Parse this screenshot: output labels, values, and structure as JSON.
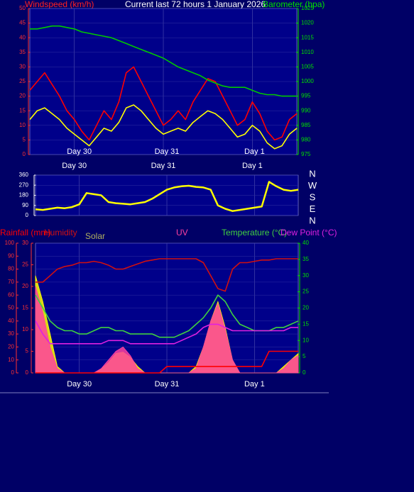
{
  "chart_data": [
    {
      "type": "line",
      "title": "Current last 72 hours 1 January 2026",
      "ylabel": "Windspeed (km/h)",
      "y2label": "Barometer (hpa)",
      "categories": [
        null,
        null,
        null,
        null,
        null,
        null,
        "Day 30",
        null,
        null,
        null,
        null,
        null,
        null,
        null,
        null,
        null,
        null,
        null,
        "Day 31",
        null,
        null,
        null,
        null,
        null,
        null,
        null,
        null,
        null,
        null,
        null,
        "Day 1",
        null,
        null,
        null,
        null,
        null,
        null
      ],
      "ylim": [
        0,
        50
      ],
      "yticks": [
        0,
        5,
        10,
        15,
        20,
        25,
        30,
        35,
        40,
        45,
        50
      ],
      "y2lim": [
        975,
        1025
      ],
      "y2ticks": [
        975,
        980,
        985,
        990,
        995,
        1000,
        1005,
        1010,
        1015,
        1020,
        1025
      ],
      "series": [
        {
          "color": "#ff0000",
          "values": [
            22,
            25,
            28,
            24,
            20,
            15,
            12,
            8,
            5,
            10,
            15,
            12,
            18,
            28,
            30,
            25,
            20,
            15,
            10,
            12,
            15,
            12,
            18,
            22,
            26,
            25,
            20,
            15,
            10,
            12,
            18,
            14,
            8,
            5,
            6,
            12,
            14
          ]
        },
        {
          "color": "#ffff00",
          "values": [
            12,
            15,
            16,
            14,
            12,
            9,
            7,
            5,
            3,
            6,
            9,
            8,
            11,
            16,
            17,
            15,
            12,
            9,
            7,
            8,
            9,
            8,
            11,
            13,
            15,
            14,
            12,
            9,
            6,
            7,
            10,
            8,
            4,
            2,
            3,
            7,
            9
          ]
        },
        {
          "color": "#00c800",
          "axis": "y2",
          "values": [
            1018,
            1018,
            1018.5,
            1019,
            1019,
            1018.5,
            1018,
            1017,
            1016.5,
            1016,
            1015.5,
            1015,
            1014,
            1013,
            1012,
            1011,
            1010,
            1009,
            1008,
            1006.5,
            1005,
            1004,
            1003,
            1002,
            1000.5,
            999.5,
            998.5,
            998,
            998,
            998,
            997,
            996,
            995.5,
            995.5,
            995,
            995,
            995
          ]
        }
      ]
    },
    {
      "type": "line",
      "categories": [
        null,
        null,
        null,
        null,
        null,
        null,
        "Day 30",
        null,
        null,
        null,
        null,
        null,
        null,
        null,
        null,
        null,
        null,
        null,
        "Day 31",
        null,
        null,
        null,
        null,
        null,
        null,
        null,
        null,
        null,
        null,
        null,
        "Day 1",
        null,
        null,
        null,
        null,
        null,
        null
      ],
      "ylim": [
        0,
        360
      ],
      "yticks": [
        0,
        90,
        180,
        270,
        360
      ],
      "direction_labels": [
        "N",
        "W",
        "S",
        "E",
        "N"
      ],
      "series": [
        {
          "color": "#ffff00",
          "values": [
            55,
            50,
            60,
            70,
            65,
            75,
            100,
            200,
            190,
            180,
            120,
            110,
            105,
            100,
            110,
            120,
            150,
            190,
            230,
            250,
            260,
            265,
            255,
            250,
            230,
            90,
            60,
            40,
            50,
            60,
            70,
            80,
            300,
            260,
            230,
            220,
            230
          ]
        }
      ]
    },
    {
      "type": "line",
      "categories": [
        null,
        null,
        null,
        null,
        null,
        null,
        "Day 30",
        null,
        null,
        null,
        null,
        null,
        null,
        null,
        null,
        null,
        null,
        null,
        "Day 31",
        null,
        null,
        null,
        null,
        null,
        null,
        null,
        null,
        null,
        null,
        null,
        "Day 1",
        null,
        null,
        null,
        null,
        null,
        null
      ],
      "ylim": [
        0,
        100
      ],
      "yticks": [
        0,
        10,
        20,
        30,
        40,
        50,
        60,
        70,
        80,
        90,
        100
      ],
      "y2lim": [
        0,
        30
      ],
      "y2ticks": [
        0,
        5,
        10,
        15,
        20,
        25,
        30
      ],
      "y3lim": [
        0,
        40
      ],
      "y3ticks": [
        0,
        5,
        10,
        15,
        20,
        25,
        30,
        35,
        40
      ],
      "series": [
        {
          "name": "Solar",
          "color": "#ffff00",
          "area": true,
          "values": [
            75,
            55,
            30,
            5,
            0,
            0,
            0,
            0,
            0,
            3,
            8,
            15,
            16,
            12,
            5,
            0,
            0,
            0,
            0,
            0,
            0,
            0,
            5,
            20,
            40,
            55,
            35,
            10,
            0,
            0,
            0,
            0,
            0,
            0,
            5,
            10,
            15
          ]
        },
        {
          "name": "UV",
          "color": "#ff40a0",
          "axis": "y2",
          "area": true,
          "values": [
            20,
            14,
            6,
            1,
            0,
            0,
            0,
            0,
            0,
            1,
            3,
            5,
            6,
            4,
            1,
            0,
            0,
            0,
            0,
            0,
            0,
            0,
            1,
            6,
            12,
            16,
            10,
            3,
            0,
            0,
            0,
            0,
            0,
            0,
            1,
            3,
            4
          ]
        },
        {
          "name": "Rainfall (mm)",
          "color": "#ff0000",
          "axis": "y2",
          "values": [
            0,
            0,
            0,
            0,
            0,
            0,
            0,
            0,
            0,
            0,
            0,
            0,
            0,
            0,
            0,
            0,
            0,
            0,
            1.5,
            1.5,
            1.5,
            1.5,
            1.5,
            1.5,
            1.5,
            1.5,
            1.5,
            1.5,
            1.5,
            1.5,
            1.5,
            1.5,
            5,
            5,
            5,
            5,
            5
          ]
        },
        {
          "name": "Humidity",
          "color": "#d01010",
          "values": [
            70,
            70,
            75,
            80,
            82,
            83,
            85,
            85,
            86,
            85,
            83,
            80,
            80,
            82,
            84,
            86,
            87,
            88,
            88,
            88,
            88,
            88,
            88,
            85,
            75,
            65,
            63,
            80,
            85,
            85,
            86,
            87,
            87,
            88,
            88,
            88,
            88
          ]
        },
        {
          "name": "Temperature (°C)",
          "color": "#40d040",
          "axis": "y3",
          "values": [
            24,
            20,
            16,
            14,
            13,
            13,
            12,
            12,
            13,
            14,
            14,
            13,
            13,
            12,
            12,
            12,
            12,
            11,
            11,
            11,
            12,
            13,
            15,
            17,
            20,
            24,
            22,
            18,
            15,
            14,
            13,
            13,
            13,
            14,
            14,
            15,
            16
          ]
        },
        {
          "name": "Dew Point (°C)",
          "color": "#e020e0",
          "axis": "y3",
          "values": [
            16,
            12,
            9,
            9,
            9,
            9,
            9,
            9,
            9,
            9,
            10,
            10,
            10,
            9,
            9,
            9,
            9,
            9,
            9,
            9,
            10,
            11,
            12,
            14,
            15,
            15,
            14,
            13,
            13,
            13,
            13,
            13,
            13,
            13,
            13,
            14,
            14
          ]
        }
      ]
    }
  ]
}
